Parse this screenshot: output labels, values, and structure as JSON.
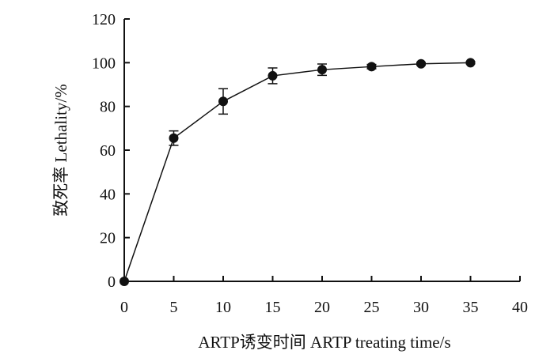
{
  "chart_data": {
    "type": "line",
    "title": "",
    "xlabel": "ARTP诱变时间  ARTP treating time/s",
    "ylabel": "致死率  Lethality/%",
    "xlim": [
      0,
      40
    ],
    "ylim": [
      0,
      120
    ],
    "xticks": [
      0,
      5,
      10,
      15,
      20,
      25,
      30,
      35,
      40
    ],
    "yticks": [
      0,
      20,
      40,
      60,
      80,
      100,
      120
    ],
    "grid": false,
    "series": [
      {
        "x": [
          0,
          5,
          10,
          15,
          20,
          25,
          30,
          35
        ],
        "y": [
          0,
          65.5,
          82.3,
          94.0,
          96.8,
          98.2,
          99.5,
          100
        ],
        "error": [
          0,
          3.3,
          5.8,
          3.6,
          2.6,
          1.0,
          0.6,
          0.5
        ]
      }
    ]
  }
}
